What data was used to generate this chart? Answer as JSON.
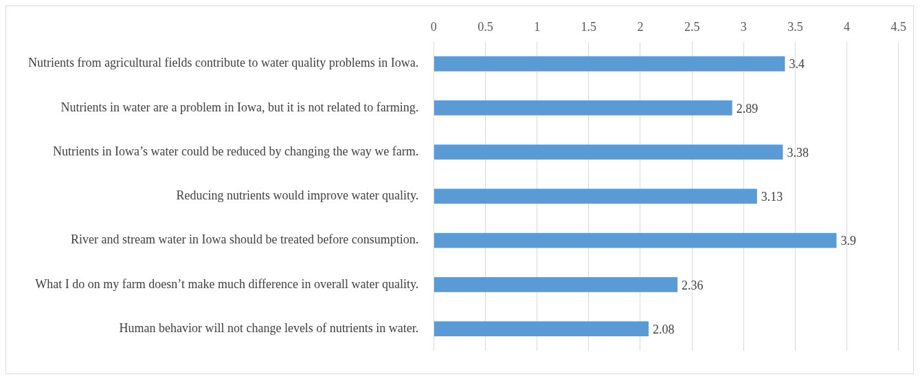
{
  "chart_data": {
    "type": "bar",
    "orientation": "horizontal",
    "categories": [
      "Nutrients from agricultural fields contribute to water quality problems in Iowa.",
      "Nutrients in water are a problem in Iowa, but it is not related to farming.",
      "Nutrients in Iowa’s water could be reduced by changing the way we farm.",
      "Reducing nutrients would improve water quality.",
      "River and stream water in Iowa should be treated before consumption.",
      "What I do on my farm doesn’t make much difference in overall water quality.",
      "Human behavior will not change levels of nutrients in water."
    ],
    "values": [
      3.4,
      2.89,
      3.38,
      3.13,
      3.9,
      2.36,
      2.08
    ],
    "color": "#5b9bd5",
    "xlim": [
      0,
      4.5
    ],
    "xticks": [
      0,
      0.5,
      1,
      1.5,
      2,
      2.5,
      3,
      3.5,
      4,
      4.5
    ],
    "grid": "x",
    "data_labels": true,
    "legend": false
  }
}
